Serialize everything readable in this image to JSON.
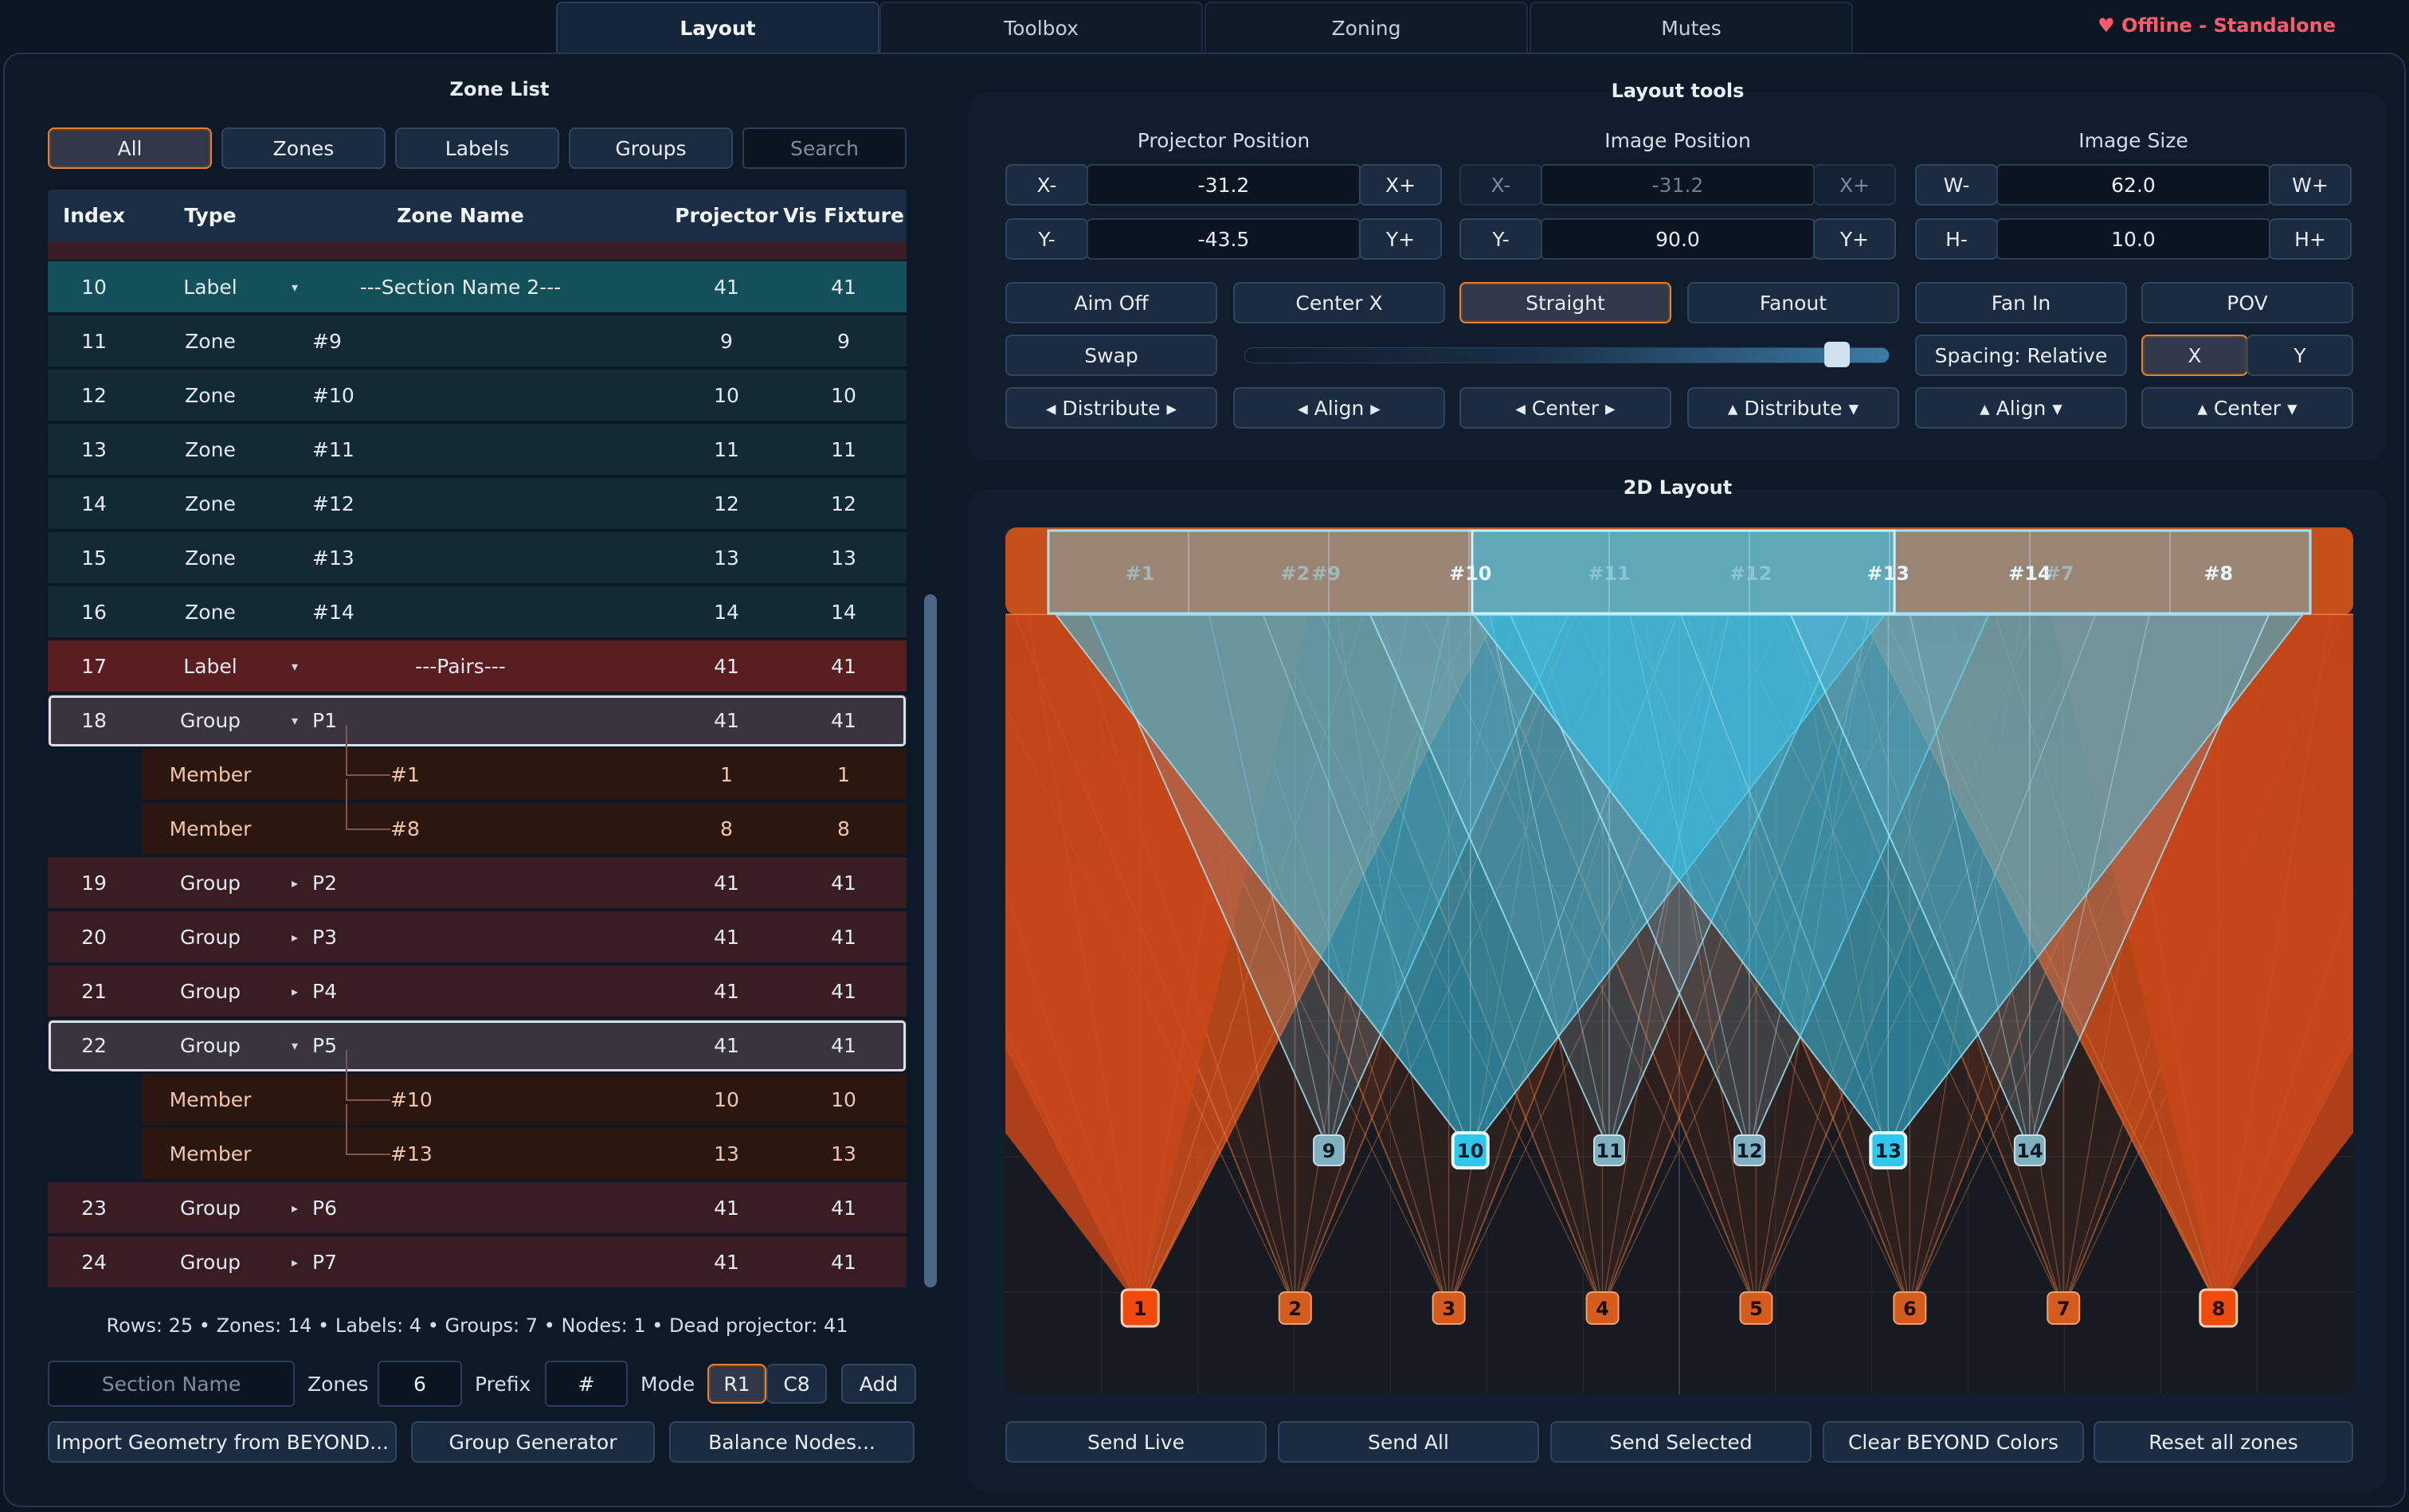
{
  "tabs": [
    "Layout",
    "Toolbox",
    "Zoning",
    "Mutes"
  ],
  "status": "♥ Offline - Standalone",
  "zone_list": {
    "title": "Zone List",
    "filters": [
      "All",
      "Zones",
      "Labels",
      "Groups"
    ],
    "search_placeholder": "Search",
    "columns": [
      "Index",
      "Type",
      "Zone Name",
      "Projector",
      "Vis Fixture"
    ],
    "rows": [
      {
        "index": "10",
        "type": "Label",
        "name": "---Section Name 2---",
        "arrow": "▾",
        "projector": "41",
        "vis": "41"
      },
      {
        "index": "11",
        "type": "Zone",
        "name": "#9",
        "arrow": "",
        "projector": "9",
        "vis": "9"
      },
      {
        "index": "12",
        "type": "Zone",
        "name": "#10",
        "arrow": "",
        "projector": "10",
        "vis": "10"
      },
      {
        "index": "13",
        "type": "Zone",
        "name": "#11",
        "arrow": "",
        "projector": "11",
        "vis": "11"
      },
      {
        "index": "14",
        "type": "Zone",
        "name": "#12",
        "arrow": "",
        "projector": "12",
        "vis": "12"
      },
      {
        "index": "15",
        "type": "Zone",
        "name": "#13",
        "arrow": "",
        "projector": "13",
        "vis": "13"
      },
      {
        "index": "16",
        "type": "Zone",
        "name": "#14",
        "arrow": "",
        "projector": "14",
        "vis": "14"
      },
      {
        "index": "17",
        "type": "Label",
        "name": "---Pairs---",
        "arrow": "▾",
        "projector": "41",
        "vis": "41"
      },
      {
        "index": "18",
        "type": "Group",
        "name": "P1",
        "arrow": "▾",
        "projector": "41",
        "vis": "41"
      },
      {
        "index": "",
        "type": "Member",
        "name": "#1",
        "arrow": "",
        "projector": "1",
        "vis": "1"
      },
      {
        "index": "",
        "type": "Member",
        "name": "#8",
        "arrow": "",
        "projector": "8",
        "vis": "8"
      },
      {
        "index": "19",
        "type": "Group",
        "name": "P2",
        "arrow": "▸",
        "projector": "41",
        "vis": "41"
      },
      {
        "index": "20",
        "type": "Group",
        "name": "P3",
        "arrow": "▸",
        "projector": "41",
        "vis": "41"
      },
      {
        "index": "21",
        "type": "Group",
        "name": "P4",
        "arrow": "▸",
        "projector": "41",
        "vis": "41"
      },
      {
        "index": "22",
        "type": "Group",
        "name": "P5",
        "arrow": "▾",
        "projector": "41",
        "vis": "41"
      },
      {
        "index": "",
        "type": "Member",
        "name": "#10",
        "arrow": "",
        "projector": "10",
        "vis": "10"
      },
      {
        "index": "",
        "type": "Member",
        "name": "#13",
        "arrow": "",
        "projector": "13",
        "vis": "13"
      },
      {
        "index": "23",
        "type": "Group",
        "name": "P6",
        "arrow": "▸",
        "projector": "41",
        "vis": "41"
      },
      {
        "index": "24",
        "type": "Group",
        "name": "P7",
        "arrow": "▸",
        "projector": "41",
        "vis": "41"
      }
    ],
    "summary": "Rows: 25 • Zones: 14 • Labels: 4 • Groups: 7 • Nodes: 1 • Dead projector: 41",
    "section_placeholder": "Section Name",
    "zones_label": "Zones",
    "zones_value": "6",
    "prefix_label": "Prefix",
    "prefix_value": "#",
    "mode_label": "Mode",
    "mode_options": [
      "R1",
      "C8"
    ],
    "add_label": "Add",
    "import_label": "Import Geometry from BEYOND...",
    "group_gen_label": "Group Generator",
    "balance_label": "Balance Nodes..."
  },
  "layout_tools": {
    "title": "Layout tools",
    "projector_position": {
      "label": "Projector Position",
      "x": "-31.2",
      "y": "-43.5"
    },
    "image_position": {
      "label": "Image Position",
      "x": "-31.2",
      "y": "90.0"
    },
    "image_size": {
      "label": "Image Size",
      "w": "62.0",
      "h": "10.0"
    },
    "step": {
      "xm": "X-",
      "xp": "X+",
      "ym": "Y-",
      "yp": "Y+",
      "wm": "W-",
      "wp": "W+",
      "hm": "H-",
      "hp": "H+"
    },
    "row1": [
      "Aim Off",
      "Center X",
      "Straight",
      "Fanout",
      "Fan In",
      "POV"
    ],
    "swap": "Swap",
    "slider_value": 0.92,
    "spacing": "Spacing: Relative",
    "axis": [
      "X",
      "Y"
    ],
    "row3": [
      "◂ Distribute ▸",
      "◂ Align ▸",
      "◂ Center ▸",
      "▴ Distribute ▾",
      "▴ Align ▾",
      "▴ Center ▾"
    ]
  },
  "layout2d": {
    "title": "2D Layout",
    "zones_top": [
      {
        "label": "#1",
        "x": 0.1,
        "sel": false
      },
      {
        "label": "#2",
        "x": 0.215,
        "sel": false
      },
      {
        "label": "#9",
        "x": 0.238,
        "sel": false
      },
      {
        "label": "#10",
        "x": 0.345,
        "sel": true
      },
      {
        "label": "#11",
        "x": 0.448,
        "sel": false
      },
      {
        "label": "#12",
        "x": 0.553,
        "sel": false
      },
      {
        "label": "#13",
        "x": 0.655,
        "sel": true
      },
      {
        "label": "#14",
        "x": 0.76,
        "sel": true
      },
      {
        "label": "#7",
        "x": 0.782,
        "sel": false
      },
      {
        "label": "#8",
        "x": 0.9,
        "sel": true
      }
    ],
    "top_nodes": [
      {
        "label": "9",
        "x": 0.24,
        "sel": false
      },
      {
        "label": "10",
        "x": 0.345,
        "sel": true
      },
      {
        "label": "11",
        "x": 0.448,
        "sel": false
      },
      {
        "label": "12",
        "x": 0.552,
        "sel": false
      },
      {
        "label": "13",
        "x": 0.655,
        "sel": true
      },
      {
        "label": "14",
        "x": 0.76,
        "sel": false
      }
    ],
    "bottom_nodes": [
      {
        "label": "1",
        "x": 0.1,
        "sel": true
      },
      {
        "label": "2",
        "x": 0.215,
        "sel": false
      },
      {
        "label": "3",
        "x": 0.329,
        "sel": false
      },
      {
        "label": "4",
        "x": 0.443,
        "sel": false
      },
      {
        "label": "5",
        "x": 0.557,
        "sel": false
      },
      {
        "label": "6",
        "x": 0.671,
        "sel": false
      },
      {
        "label": "7",
        "x": 0.785,
        "sel": false
      },
      {
        "label": "8",
        "x": 0.9,
        "sel": true
      }
    ],
    "actions": [
      "Send Live",
      "Send All",
      "Send Selected",
      "Clear BEYOND Colors",
      "Reset all zones"
    ]
  },
  "colors": {
    "accent_orange": "#e4823a",
    "zone_blue": "#3cc8ea",
    "projector_orange": "#d94b12",
    "label_row": "#14505a",
    "group_row": "#3a1d22",
    "member_row": "#2b170f"
  }
}
